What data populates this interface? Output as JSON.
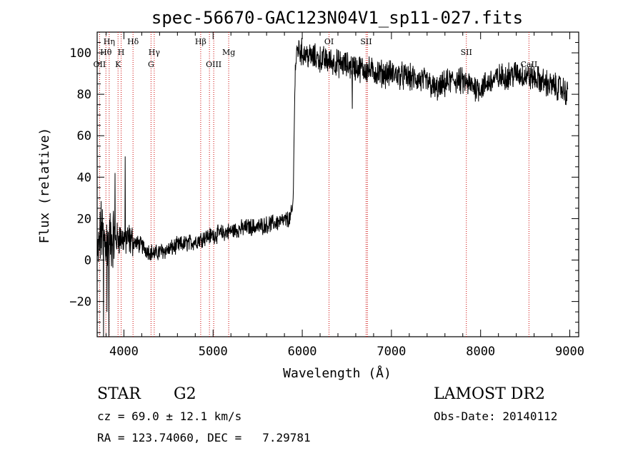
{
  "chart_data": {
    "type": "line",
    "title": "spec-56670-GAC123N04V1_sp11-027.fits",
    "xlabel": "Wavelength (Å)",
    "ylabel": "Flux (relative)",
    "xlim": [
      3700,
      9100
    ],
    "ylim": [
      -37,
      110
    ],
    "xticks": [
      4000,
      5000,
      6000,
      7000,
      8000,
      9000
    ],
    "yticks": [
      -20,
      0,
      20,
      40,
      60,
      80,
      100
    ],
    "grid": false,
    "line_color": "#000000",
    "marker_color": "#cc0000",
    "series": [
      {
        "anchors": [
          [
            3705,
            0
          ],
          [
            3725,
            8
          ],
          [
            3745,
            14
          ],
          [
            3765,
            12
          ],
          [
            3790,
            10
          ],
          [
            3820,
            9
          ],
          [
            3850,
            10
          ],
          [
            3880,
            11
          ],
          [
            3910,
            10
          ],
          [
            3950,
            11
          ],
          [
            4000,
            10
          ],
          [
            4050,
            10
          ],
          [
            4100,
            9
          ],
          [
            4150,
            8
          ],
          [
            4200,
            7
          ],
          [
            4250,
            5
          ],
          [
            4300,
            4
          ],
          [
            4350,
            3
          ],
          [
            4400,
            4
          ],
          [
            4500,
            5
          ],
          [
            4600,
            7
          ],
          [
            4700,
            8
          ],
          [
            4800,
            9
          ],
          [
            4900,
            11
          ],
          [
            5000,
            12
          ],
          [
            5100,
            13
          ],
          [
            5200,
            14
          ],
          [
            5300,
            15
          ],
          [
            5400,
            16
          ],
          [
            5500,
            16
          ],
          [
            5600,
            17
          ],
          [
            5700,
            18
          ],
          [
            5800,
            19
          ],
          [
            5860,
            20
          ],
          [
            5890,
            24
          ],
          [
            5900,
            32
          ],
          [
            5905,
            45
          ],
          [
            5910,
            70
          ],
          [
            5920,
            90
          ],
          [
            5935,
            99
          ],
          [
            5950,
            102
          ],
          [
            6000,
            100
          ],
          [
            6100,
            98
          ],
          [
            6200,
            97
          ],
          [
            6300,
            96
          ],
          [
            6400,
            95
          ],
          [
            6500,
            94
          ],
          [
            6600,
            93
          ],
          [
            6700,
            92
          ],
          [
            6800,
            91
          ],
          [
            6900,
            90
          ],
          [
            7000,
            90
          ],
          [
            7100,
            89
          ],
          [
            7200,
            88
          ],
          [
            7300,
            87
          ],
          [
            7400,
            86
          ],
          [
            7450,
            84
          ],
          [
            7500,
            82
          ],
          [
            7550,
            83
          ],
          [
            7600,
            85
          ],
          [
            7700,
            87
          ],
          [
            7800,
            86
          ],
          [
            7900,
            84
          ],
          [
            8000,
            83
          ],
          [
            8100,
            86
          ],
          [
            8200,
            88
          ],
          [
            8300,
            89
          ],
          [
            8400,
            90
          ],
          [
            8500,
            89
          ],
          [
            8600,
            88
          ],
          [
            8700,
            86
          ],
          [
            8800,
            84
          ],
          [
            8900,
            83
          ],
          [
            8980,
            80
          ]
        ],
        "features": [
          [
            3770,
            -38
          ],
          [
            3810,
            -25
          ],
          [
            3830,
            -38
          ],
          [
            3900,
            42
          ],
          [
            4015,
            50
          ],
          [
            6560,
            73
          ]
        ]
      }
    ],
    "lines": [
      {
        "x": 3727,
        "label": "OII",
        "row": 3
      },
      {
        "x": 3798,
        "label": "Hθ",
        "row": 2
      },
      {
        "x": 3835,
        "label": "Hη",
        "row": 1
      },
      {
        "x": 3934,
        "label": "K",
        "row": 3
      },
      {
        "x": 3969,
        "label": "H",
        "row": 2
      },
      {
        "x": 4102,
        "label": "Hδ",
        "row": 1
      },
      {
        "x": 4304,
        "label": "G",
        "row": 3
      },
      {
        "x": 4340,
        "label": "Hγ",
        "row": 2
      },
      {
        "x": 4861,
        "label": "Hβ",
        "row": 1
      },
      {
        "x": 4959,
        "label": "",
        "row": 0
      },
      {
        "x": 5007,
        "label": "OIII",
        "row": 3
      },
      {
        "x": 5175,
        "label": "Mg",
        "row": 2
      },
      {
        "x": 6300,
        "label": "OI",
        "row": 1
      },
      {
        "x": 6716,
        "label": "SII",
        "row": 1
      },
      {
        "x": 6731,
        "label": "",
        "row": 0
      },
      {
        "x": 7840,
        "label": "SII",
        "row": 2
      },
      {
        "x": 8542,
        "label": "CaII",
        "row": 3
      }
    ]
  },
  "info": {
    "object_type": "STAR",
    "subclass": "G2",
    "survey": "LAMOST DR2",
    "redshift": "cz = 69.0 ± 12.1 km/s",
    "obs_date": "Obs-Date: 20140112",
    "coords": "RA = 123.74060, DEC =   7.29781"
  }
}
